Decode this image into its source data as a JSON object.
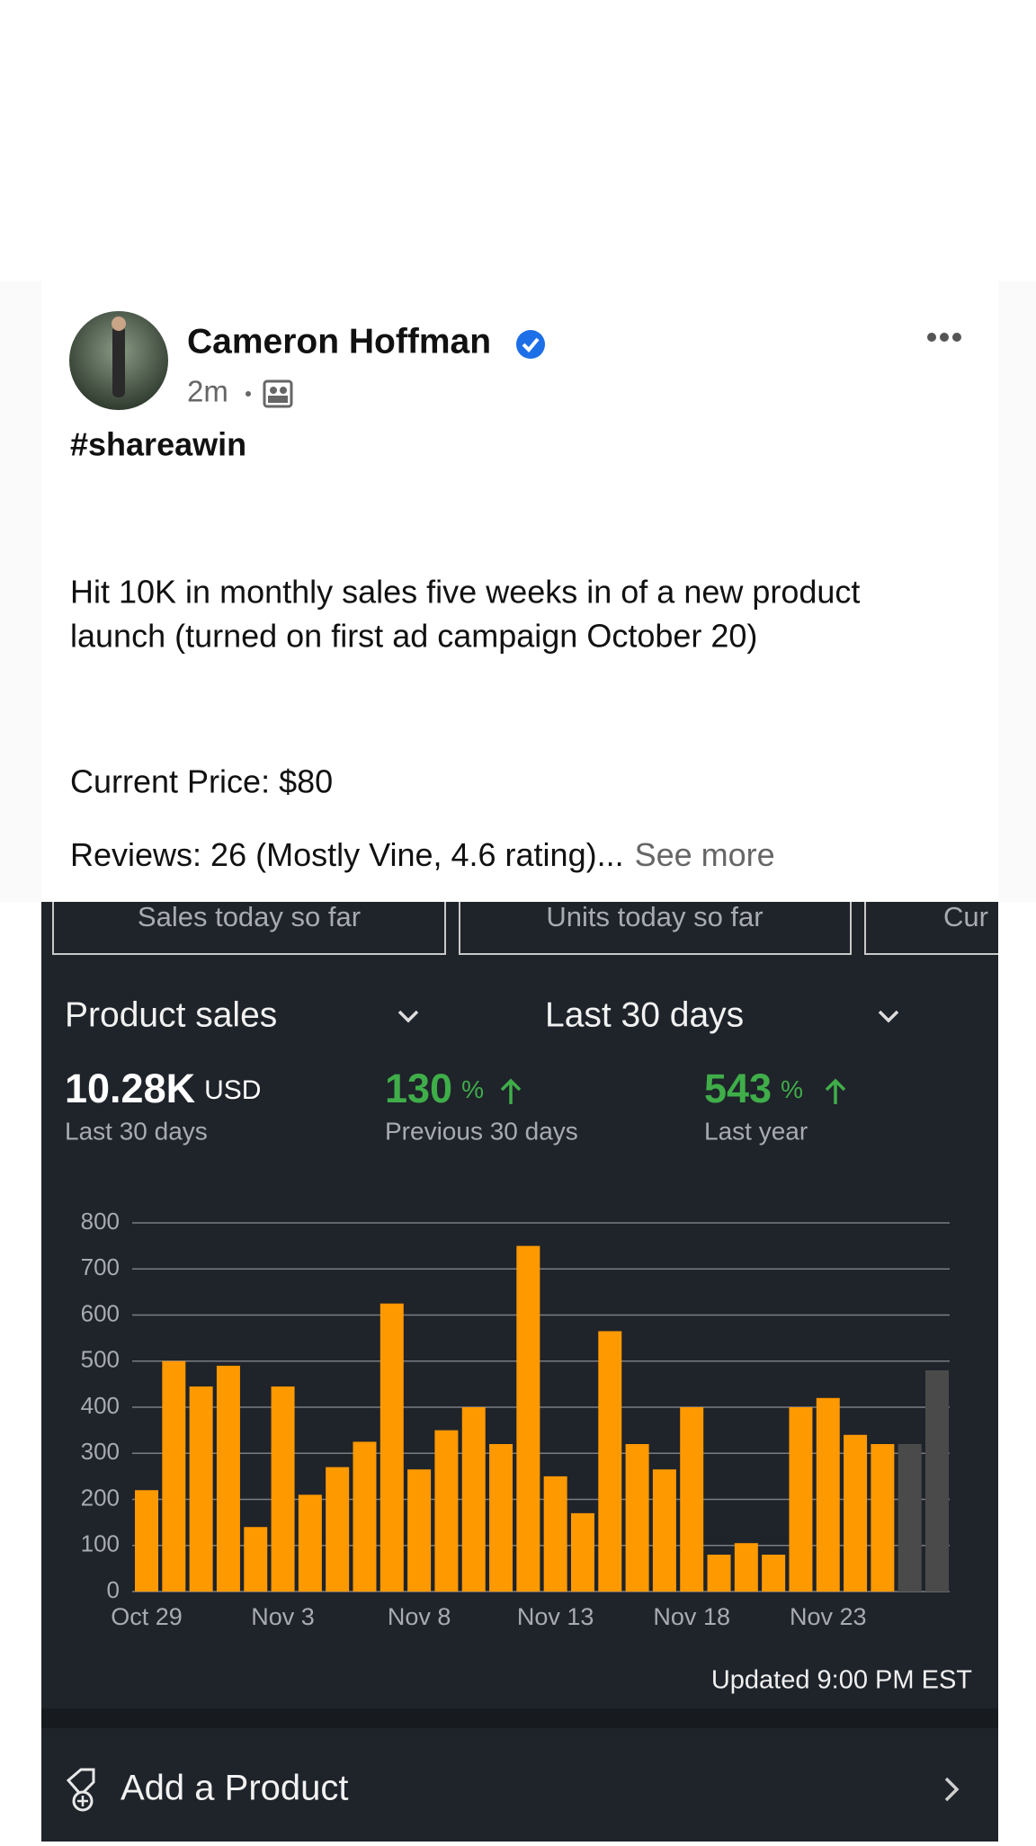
{
  "post": {
    "author": "Cameron Hoffman",
    "time": "2m",
    "hashtag": "#shareawin",
    "body_lines": [
      "Hit 10K in monthly sales five weeks in of a new product",
      "launch (turned on first ad campaign October 20)"
    ],
    "price": "Current Price: $80",
    "reviews": "Reviews: 26 (Mostly Vine, 4.6 rating)...",
    "see_more": "See more"
  },
  "dashboard": {
    "tabs": [
      "Sales today so far",
      "Units today so far",
      "Cur"
    ],
    "metric_select": "Product sales",
    "period_select": "Last 30 days",
    "total": {
      "value": "10.28K",
      "unit": "USD",
      "label": "Last 30 days"
    },
    "stats": [
      {
        "value": "130",
        "unit": "%",
        "label": "Previous 30 days"
      },
      {
        "value": "543",
        "unit": "%",
        "label": "Last year"
      }
    ],
    "updated": "Updated 9:00 PM EST",
    "action": "Add a Product"
  },
  "chart_data": {
    "type": "bar",
    "categories": [
      "Oct 29",
      null,
      null,
      null,
      null,
      "Nov 3",
      null,
      null,
      null,
      null,
      "Nov 8",
      null,
      null,
      null,
      null,
      "Nov 13",
      null,
      null,
      null,
      null,
      "Nov 18",
      null,
      null,
      null,
      null,
      "Nov 23",
      null,
      null,
      null,
      null
    ],
    "values": [
      220,
      500,
      445,
      490,
      140,
      445,
      210,
      270,
      325,
      625,
      265,
      350,
      400,
      320,
      750,
      250,
      170,
      565,
      320,
      265,
      400,
      80,
      105,
      80,
      400,
      420,
      340,
      320,
      320,
      480
    ],
    "colors": [
      "#ff9900",
      "#ff9900",
      "#ff9900",
      "#ff9900",
      "#ff9900",
      "#ff9900",
      "#ff9900",
      "#ff9900",
      "#ff9900",
      "#ff9900",
      "#ff9900",
      "#ff9900",
      "#ff9900",
      "#ff9900",
      "#ff9900",
      "#ff9900",
      "#ff9900",
      "#ff9900",
      "#ff9900",
      "#ff9900",
      "#ff9900",
      "#ff9900",
      "#ff9900",
      "#ff9900",
      "#ff9900",
      "#ff9900",
      "#ff9900",
      "#ff9900",
      "#4a4a4a",
      "#4a4a4a"
    ],
    "ylim": [
      0,
      800
    ],
    "yticks": [
      0,
      100,
      200,
      300,
      400,
      500,
      600,
      700,
      800
    ],
    "grid": true
  }
}
